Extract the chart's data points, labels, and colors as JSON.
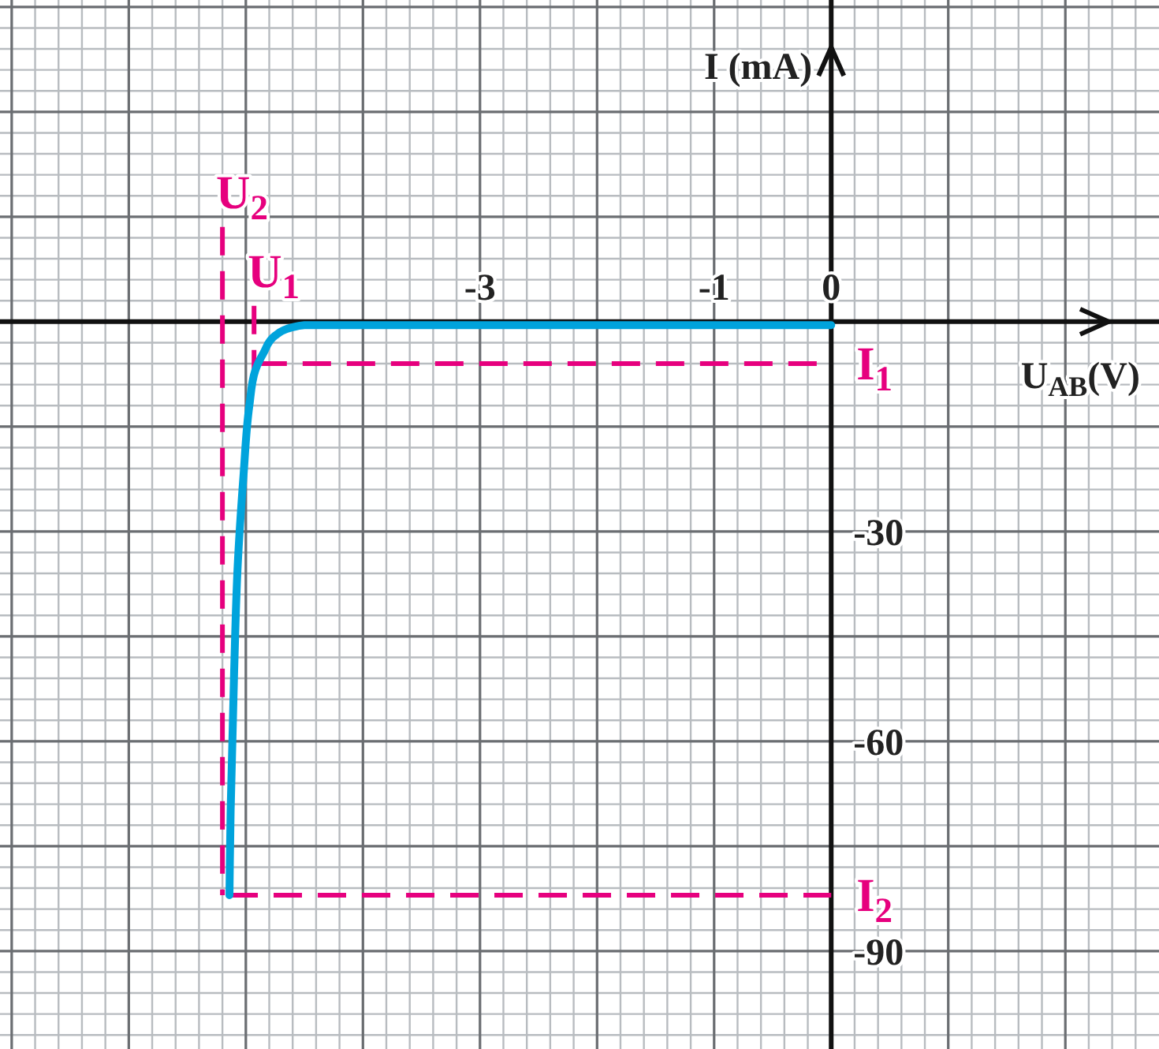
{
  "chart_data": {
    "type": "line",
    "xlabel": "U$_{AB}$(V)",
    "ylabel": "I (mA)",
    "x": [
      0,
      -4.5,
      -4.6,
      -4.75,
      -4.85,
      -4.92,
      -4.97,
      -5.02,
      -5.07,
      -5.1,
      -5.13,
      -5.14
    ],
    "series": [
      {
        "color": "#00a3dc",
        "values": [
          -0.5,
          -0.5,
          -0.8,
          -2,
          -4.5,
          -7,
          -12,
          -22,
          -35,
          -50,
          -70,
          -82
        ]
      }
    ],
    "xlim": [
      -7.1,
      2.8
    ],
    "ylim": [
      -104,
      46
    ],
    "xticks": [
      {
        "value": -7,
        "label": null
      },
      {
        "value": -6,
        "label": null
      },
      {
        "value": -5,
        "label": null
      },
      {
        "value": -4,
        "label": null
      },
      -3,
      {
        "value": -2,
        "label": null
      },
      -1,
      0,
      {
        "value": 1,
        "label": null
      },
      {
        "value": 2,
        "label": null
      }
    ],
    "yticks": [
      {
        "value": -90,
        "label": "-90"
      },
      {
        "value": -75,
        "label": null
      },
      {
        "value": -60,
        "label": "-60"
      },
      {
        "value": -45,
        "label": null
      },
      {
        "value": -30,
        "label": "-30"
      },
      {
        "value": -15,
        "label": null
      },
      {
        "value": 0,
        "label": null
      },
      {
        "value": 15,
        "label": null
      },
      {
        "value": 30,
        "label": null
      },
      {
        "value": 45,
        "label": null
      }
    ],
    "grid": true,
    "marker": "none",
    "line_style": "solid",
    "ref_lines": [
      {
        "axis": "x",
        "value": -5.2,
        "label": "U$_{2}$",
        "color": "#e6007e",
        "line_style": "dashed"
      },
      {
        "axis": "x",
        "value": -4.93,
        "label": "U$_{1}$",
        "color": "#e6007e",
        "line_style": "dashed"
      },
      {
        "axis": "y",
        "value": -6,
        "label": "I$_{1}$",
        "color": "#e6007e",
        "line_style": "dashed"
      },
      {
        "axis": "y",
        "value": -82,
        "label": "I$_{2}$",
        "color": "#e6007e",
        "line_style": "dashed"
      }
    ]
  }
}
